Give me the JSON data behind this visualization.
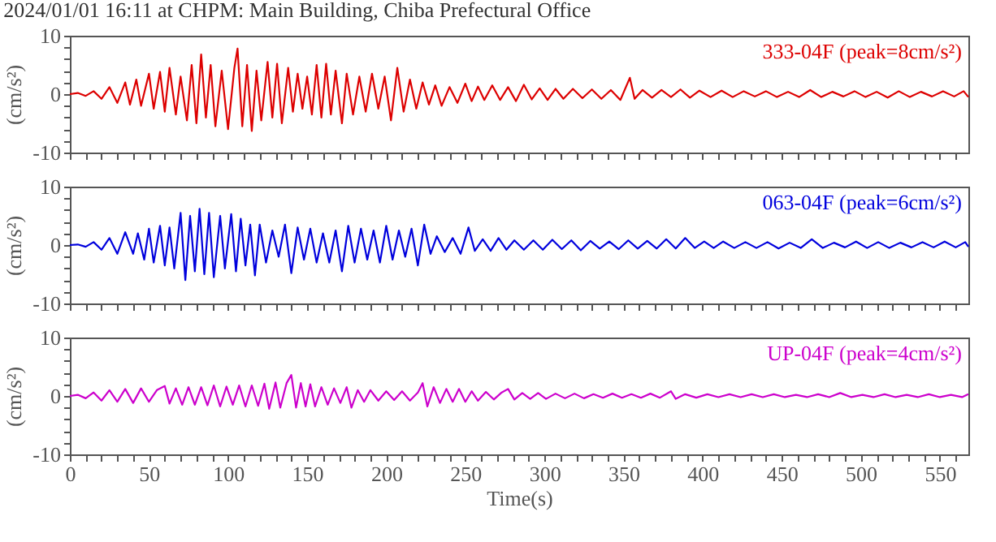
{
  "chart_data": [
    {
      "type": "line",
      "title": "2024/01/01 16:11 at CHPM: Main Building, Chiba Prefectural Office",
      "ylabel": "(cm/s²)",
      "xlim": [
        0,
        568
      ],
      "ylim": [
        -10,
        10
      ],
      "tick_labels": "y",
      "grid": false,
      "legend": false,
      "xticks": [
        0,
        {
          "value": 10,
          "label": null
        },
        {
          "value": 20,
          "label": null
        },
        {
          "value": 30,
          "label": null
        },
        {
          "value": 40,
          "label": null
        },
        50,
        {
          "value": 60,
          "label": null
        },
        {
          "value": 70,
          "label": null
        },
        {
          "value": 80,
          "label": null
        },
        {
          "value": 90,
          "label": null
        },
        100,
        {
          "value": 110,
          "label": null
        },
        {
          "value": 120,
          "label": null
        },
        {
          "value": 130,
          "label": null
        },
        {
          "value": 140,
          "label": null
        },
        150,
        {
          "value": 160,
          "label": null
        },
        {
          "value": 170,
          "label": null
        },
        {
          "value": 180,
          "label": null
        },
        {
          "value": 190,
          "label": null
        },
        200,
        {
          "value": 210,
          "label": null
        },
        {
          "value": 220,
          "label": null
        },
        {
          "value": 230,
          "label": null
        },
        {
          "value": 240,
          "label": null
        },
        250,
        {
          "value": 260,
          "label": null
        },
        {
          "value": 270,
          "label": null
        },
        {
          "value": 280,
          "label": null
        },
        {
          "value": 290,
          "label": null
        },
        300,
        {
          "value": 310,
          "label": null
        },
        {
          "value": 320,
          "label": null
        },
        {
          "value": 330,
          "label": null
        },
        {
          "value": 340,
          "label": null
        },
        350,
        {
          "value": 360,
          "label": null
        },
        {
          "value": 370,
          "label": null
        },
        {
          "value": 380,
          "label": null
        },
        {
          "value": 390,
          "label": null
        },
        400,
        {
          "value": 410,
          "label": null
        },
        {
          "value": 420,
          "label": null
        },
        {
          "value": 430,
          "label": null
        },
        {
          "value": 440,
          "label": null
        },
        450,
        {
          "value": 460,
          "label": null
        },
        {
          "value": 470,
          "label": null
        },
        {
          "value": 480,
          "label": null
        },
        {
          "value": 490,
          "label": null
        },
        500,
        {
          "value": 510,
          "label": null
        },
        {
          "value": 520,
          "label": null
        },
        {
          "value": 530,
          "label": null
        },
        {
          "value": 540,
          "label": null
        },
        550,
        {
          "value": 560,
          "label": null
        }
      ],
      "yticks": [
        -10,
        {
          "value": -8,
          "label": null
        },
        {
          "value": -6,
          "label": null
        },
        {
          "value": -4,
          "label": null
        },
        {
          "value": -2,
          "label": null
        },
        0,
        {
          "value": 2,
          "label": null
        },
        {
          "value": 4,
          "label": null
        },
        {
          "value": 6,
          "label": null
        },
        {
          "value": 8,
          "label": null
        },
        10
      ],
      "series": [
        {
          "name": "333-04F (peak=8cm/s²)",
          "color": "#dd0000",
          "x": [
            0,
            5,
            10,
            15,
            20,
            25,
            30,
            35,
            38,
            42,
            45,
            50,
            53,
            57,
            60,
            63,
            67,
            70,
            74,
            77,
            80,
            83,
            86,
            89,
            92,
            96,
            100,
            104,
            106,
            109,
            112,
            115,
            118,
            121,
            125,
            128,
            131,
            134,
            138,
            141,
            144,
            147,
            150,
            153,
            156,
            159,
            162,
            165,
            168,
            172,
            175,
            179,
            183,
            187,
            191,
            195,
            199,
            203,
            207,
            211,
            215,
            219,
            223,
            227,
            231,
            235,
            240,
            245,
            250,
            254,
            258,
            262,
            267,
            272,
            277,
            282,
            287,
            292,
            297,
            302,
            307,
            312,
            318,
            324,
            330,
            336,
            342,
            348,
            354,
            357,
            362,
            368,
            374,
            380,
            386,
            392,
            398,
            405,
            412,
            419,
            426,
            433,
            440,
            447,
            454,
            461,
            468,
            475,
            482,
            489,
            496,
            503,
            510,
            517,
            524,
            531,
            538,
            545,
            552,
            559,
            565,
            568
          ],
          "values": [
            0,
            0.2,
            -0.3,
            0.5,
            -0.8,
            1.2,
            -1.5,
            2,
            -1.8,
            2.5,
            -2,
            3.5,
            -2.5,
            3.8,
            -3,
            4.5,
            -3.5,
            3,
            -4.5,
            5,
            -5,
            6.8,
            -4,
            5,
            -5.5,
            4,
            -6,
            4.5,
            7.8,
            -5.5,
            5,
            -6.3,
            4,
            -4.5,
            5.5,
            -4,
            5.2,
            -5,
            4.5,
            -3,
            3.5,
            -2.5,
            3,
            -3.5,
            5,
            -4,
            5.2,
            -3.5,
            4,
            -5,
            3.5,
            -3.5,
            3,
            -3,
            3.5,
            -2.5,
            3,
            -4.5,
            4.5,
            -3,
            2.5,
            -2.5,
            2,
            -1.8,
            1.5,
            -2,
            1.2,
            -1.5,
            1.8,
            -1.2,
            1.3,
            -1,
            1.5,
            -1,
            1.2,
            -1.2,
            1.6,
            -0.9,
            1,
            -1,
            0.9,
            -0.8,
            0.9,
            -0.7,
            0.8,
            -0.8,
            0.7,
            -1,
            2.8,
            -0.8,
            0.7,
            -0.6,
            0.7,
            -0.5,
            0.8,
            -0.6,
            0.6,
            -0.5,
            0.6,
            -0.5,
            0.5,
            -0.4,
            0.5,
            -0.5,
            0.4,
            -0.5,
            0.7,
            -0.5,
            0.4,
            -0.4,
            0.5,
            -0.5,
            0.4,
            -0.6,
            0.5,
            -0.5,
            0.4,
            -0.4,
            0.5,
            -0.4,
            0.5,
            -0.5
          ]
        }
      ]
    },
    {
      "type": "line",
      "ylabel": "(cm/s²)",
      "xlim": [
        0,
        568
      ],
      "ylim": [
        -10,
        10
      ],
      "tick_labels": "y",
      "grid": false,
      "legend": false,
      "xticks": [
        0,
        {
          "value": 10,
          "label": null
        },
        {
          "value": 20,
          "label": null
        },
        {
          "value": 30,
          "label": null
        },
        {
          "value": 40,
          "label": null
        },
        50,
        {
          "value": 60,
          "label": null
        },
        {
          "value": 70,
          "label": null
        },
        {
          "value": 80,
          "label": null
        },
        {
          "value": 90,
          "label": null
        },
        100,
        {
          "value": 110,
          "label": null
        },
        {
          "value": 120,
          "label": null
        },
        {
          "value": 130,
          "label": null
        },
        {
          "value": 140,
          "label": null
        },
        150,
        {
          "value": 160,
          "label": null
        },
        {
          "value": 170,
          "label": null
        },
        {
          "value": 180,
          "label": null
        },
        {
          "value": 190,
          "label": null
        },
        200,
        {
          "value": 210,
          "label": null
        },
        {
          "value": 220,
          "label": null
        },
        {
          "value": 230,
          "label": null
        },
        {
          "value": 240,
          "label": null
        },
        250,
        {
          "value": 260,
          "label": null
        },
        {
          "value": 270,
          "label": null
        },
        {
          "value": 280,
          "label": null
        },
        {
          "value": 290,
          "label": null
        },
        300,
        {
          "value": 310,
          "label": null
        },
        {
          "value": 320,
          "label": null
        },
        {
          "value": 330,
          "label": null
        },
        {
          "value": 340,
          "label": null
        },
        350,
        {
          "value": 360,
          "label": null
        },
        {
          "value": 370,
          "label": null
        },
        {
          "value": 380,
          "label": null
        },
        {
          "value": 390,
          "label": null
        },
        400,
        {
          "value": 410,
          "label": null
        },
        {
          "value": 420,
          "label": null
        },
        {
          "value": 430,
          "label": null
        },
        {
          "value": 440,
          "label": null
        },
        450,
        {
          "value": 460,
          "label": null
        },
        {
          "value": 470,
          "label": null
        },
        {
          "value": 480,
          "label": null
        },
        {
          "value": 490,
          "label": null
        },
        500,
        {
          "value": 510,
          "label": null
        },
        {
          "value": 520,
          "label": null
        },
        {
          "value": 530,
          "label": null
        },
        {
          "value": 540,
          "label": null
        },
        550,
        {
          "value": 560,
          "label": null
        }
      ],
      "yticks": [
        -10,
        {
          "value": -8,
          "label": null
        },
        {
          "value": -6,
          "label": null
        },
        {
          "value": -4,
          "label": null
        },
        {
          "value": -2,
          "label": null
        },
        0,
        {
          "value": 2,
          "label": null
        },
        {
          "value": 4,
          "label": null
        },
        {
          "value": 6,
          "label": null
        },
        {
          "value": 8,
          "label": null
        },
        10
      ],
      "series": [
        {
          "name": "063-04F (peak=6cm/s²)",
          "color": "#0000dd",
          "x": [
            0,
            5,
            10,
            15,
            20,
            25,
            30,
            35,
            40,
            43,
            47,
            50,
            53,
            57,
            60,
            63,
            66,
            70,
            73,
            76,
            79,
            82,
            85,
            88,
            91,
            95,
            98,
            102,
            105,
            108,
            111,
            114,
            117,
            120,
            124,
            128,
            132,
            136,
            140,
            144,
            148,
            152,
            156,
            160,
            164,
            168,
            172,
            176,
            180,
            184,
            188,
            192,
            196,
            200,
            204,
            208,
            212,
            216,
            220,
            224,
            228,
            232,
            237,
            242,
            247,
            252,
            256,
            261,
            266,
            271,
            276,
            281,
            287,
            293,
            299,
            305,
            311,
            317,
            323,
            329,
            335,
            341,
            347,
            353,
            359,
            365,
            371,
            377,
            383,
            389,
            395,
            401,
            407,
            413,
            420,
            427,
            434,
            441,
            448,
            455,
            462,
            469,
            476,
            483,
            490,
            497,
            504,
            511,
            518,
            525,
            532,
            539,
            546,
            553,
            560,
            566,
            568
          ],
          "values": [
            0,
            0.1,
            -0.3,
            0.5,
            -0.8,
            1.2,
            -1.5,
            2.2,
            -1.5,
            2,
            -2.5,
            2.8,
            -3,
            3.3,
            -3.5,
            3,
            -4,
            5.5,
            -6,
            5,
            -4.5,
            6.2,
            -5,
            5.5,
            -5.5,
            5,
            -4,
            5.3,
            -4.5,
            4.5,
            -3.5,
            3.5,
            -5.2,
            3.5,
            -3,
            2.5,
            -2,
            3.5,
            -4.8,
            3,
            -2.5,
            2.8,
            -3,
            2,
            -3,
            2.5,
            -4.5,
            3.3,
            -3,
            2.8,
            -2.5,
            2.5,
            -3,
            3.3,
            -2.5,
            2.5,
            -2,
            2.8,
            -3.5,
            3.5,
            -1.5,
            1.5,
            -1.2,
            1.2,
            -1.5,
            3,
            -1,
            1,
            -1,
            1.2,
            -0.8,
            0.8,
            -0.8,
            0.8,
            -0.8,
            0.9,
            -0.7,
            0.8,
            -0.9,
            0.7,
            -0.6,
            0.6,
            -0.7,
            0.8,
            -0.6,
            0.7,
            -0.6,
            1,
            -0.6,
            1.2,
            -0.5,
            0.6,
            -0.5,
            0.6,
            -0.5,
            0.5,
            -0.5,
            0.5,
            -0.6,
            0.4,
            -0.5,
            1,
            -0.5,
            0.4,
            -0.4,
            0.6,
            -0.5,
            0.5,
            -0.5,
            0.4,
            -0.4,
            0.5,
            -0.4,
            0.6,
            -0.4,
            0.5,
            -0.3
          ]
        }
      ]
    },
    {
      "type": "line",
      "xlabel": "Time(s)",
      "ylabel": "(cm/s²)",
      "xlim": [
        0,
        568
      ],
      "ylim": [
        -10,
        10
      ],
      "grid": false,
      "legend": false,
      "xticks": [
        0,
        {
          "value": 10,
          "label": null
        },
        {
          "value": 20,
          "label": null
        },
        {
          "value": 30,
          "label": null
        },
        {
          "value": 40,
          "label": null
        },
        50,
        {
          "value": 60,
          "label": null
        },
        {
          "value": 70,
          "label": null
        },
        {
          "value": 80,
          "label": null
        },
        {
          "value": 90,
          "label": null
        },
        100,
        {
          "value": 110,
          "label": null
        },
        {
          "value": 120,
          "label": null
        },
        {
          "value": 130,
          "label": null
        },
        {
          "value": 140,
          "label": null
        },
        150,
        {
          "value": 160,
          "label": null
        },
        {
          "value": 170,
          "label": null
        },
        {
          "value": 180,
          "label": null
        },
        {
          "value": 190,
          "label": null
        },
        200,
        {
          "value": 210,
          "label": null
        },
        {
          "value": 220,
          "label": null
        },
        {
          "value": 230,
          "label": null
        },
        {
          "value": 240,
          "label": null
        },
        250,
        {
          "value": 260,
          "label": null
        },
        {
          "value": 270,
          "label": null
        },
        {
          "value": 280,
          "label": null
        },
        {
          "value": 290,
          "label": null
        },
        300,
        {
          "value": 310,
          "label": null
        },
        {
          "value": 320,
          "label": null
        },
        {
          "value": 330,
          "label": null
        },
        {
          "value": 340,
          "label": null
        },
        350,
        {
          "value": 360,
          "label": null
        },
        {
          "value": 370,
          "label": null
        },
        {
          "value": 380,
          "label": null
        },
        {
          "value": 390,
          "label": null
        },
        400,
        {
          "value": 410,
          "label": null
        },
        {
          "value": 420,
          "label": null
        },
        {
          "value": 430,
          "label": null
        },
        {
          "value": 440,
          "label": null
        },
        450,
        {
          "value": 460,
          "label": null
        },
        {
          "value": 470,
          "label": null
        },
        {
          "value": 480,
          "label": null
        },
        {
          "value": 490,
          "label": null
        },
        500,
        {
          "value": 510,
          "label": null
        },
        {
          "value": 520,
          "label": null
        },
        {
          "value": 530,
          "label": null
        },
        {
          "value": 540,
          "label": null
        },
        550,
        {
          "value": 560,
          "label": null
        }
      ],
      "yticks": [
        -10,
        {
          "value": -8,
          "label": null
        },
        {
          "value": -6,
          "label": null
        },
        {
          "value": -4,
          "label": null
        },
        {
          "value": -2,
          "label": null
        },
        0,
        {
          "value": 2,
          "label": null
        },
        {
          "value": 4,
          "label": null
        },
        {
          "value": 6,
          "label": null
        },
        {
          "value": 8,
          "label": null
        },
        10
      ],
      "series": [
        {
          "name": "UP-04F (peak=4cm/s²)",
          "color": "#cc00cc",
          "x": [
            0,
            5,
            10,
            15,
            20,
            25,
            30,
            35,
            40,
            45,
            50,
            55,
            60,
            63,
            67,
            71,
            75,
            79,
            83,
            87,
            91,
            95,
            99,
            103,
            107,
            111,
            115,
            119,
            123,
            126,
            130,
            133,
            137,
            140,
            143,
            146,
            149,
            152,
            155,
            159,
            163,
            167,
            171,
            175,
            178,
            182,
            186,
            190,
            195,
            200,
            205,
            210,
            215,
            220,
            223,
            226,
            230,
            234,
            238,
            242,
            246,
            250,
            254,
            258,
            263,
            268,
            273,
            277,
            281,
            286,
            291,
            296,
            301,
            307,
            313,
            319,
            325,
            331,
            337,
            343,
            349,
            355,
            361,
            367,
            373,
            380,
            383,
            389,
            396,
            403,
            410,
            417,
            424,
            431,
            438,
            445,
            452,
            459,
            466,
            473,
            480,
            487,
            494,
            501,
            508,
            515,
            522,
            529,
            536,
            543,
            550,
            557,
            564,
            568
          ],
          "values": [
            0,
            0.2,
            -0.4,
            0.6,
            -0.8,
            1,
            -1,
            1.2,
            -1.2,
            1.3,
            -1,
            1,
            1.7,
            -1.3,
            1.3,
            -1.5,
            1.5,
            -1.5,
            1.5,
            -1.6,
            1.8,
            -1.8,
            1.6,
            -1.5,
            1.8,
            -1.8,
            1.8,
            -1.7,
            2.1,
            -2.2,
            2.3,
            -2,
            2.2,
            3.6,
            -2,
            2.2,
            -1.8,
            2,
            -1.8,
            1.5,
            -1.5,
            1.3,
            -1.2,
            1.5,
            -2,
            1,
            -1,
            1,
            -0.8,
            0.8,
            -0.7,
            0.8,
            -0.8,
            0.6,
            2.2,
            -1.8,
            1.5,
            -1.2,
            1.2,
            -1,
            1.2,
            -1,
            0.8,
            -0.8,
            0.7,
            -0.6,
            0.6,
            1.2,
            -0.6,
            0.5,
            -0.5,
            0.5,
            -0.5,
            0.4,
            -0.4,
            0.4,
            -0.4,
            0.3,
            -0.3,
            0.4,
            -0.3,
            0.3,
            -0.3,
            0.4,
            -0.3,
            0.8,
            -0.5,
            0.3,
            -0.3,
            0.3,
            -0.2,
            0.3,
            -0.2,
            0.3,
            -0.2,
            0.3,
            -0.2,
            0.2,
            -0.2,
            0.3,
            -0.2,
            0.5,
            -0.2,
            0.2,
            -0.2,
            0.3,
            -0.2,
            0.2,
            -0.2,
            0.3,
            -0.2,
            0.2,
            -0.2,
            0.3
          ]
        }
      ]
    }
  ]
}
